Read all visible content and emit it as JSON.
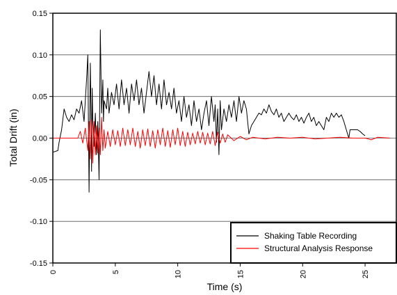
{
  "chart_data": {
    "type": "line",
    "title": "",
    "xlabel": "Time (s)",
    "ylabel": "Total Drift (in)",
    "xlim": [
      0,
      27.5
    ],
    "ylim": [
      -0.15,
      0.15
    ],
    "x_ticks": [
      0,
      5,
      10,
      15,
      20,
      25
    ],
    "x_tick_labels": [
      "0",
      "5",
      "10",
      "15",
      "20",
      "25"
    ],
    "y_ticks": [
      -0.15,
      -0.1,
      -0.05,
      0.0,
      0.05,
      0.1,
      0.15
    ],
    "y_tick_labels": [
      "-0.15",
      "-0.10",
      "-0.05",
      "0.00",
      "0.05",
      "0.10",
      "0.15"
    ],
    "grid": "horizontal",
    "legend_position": "bottom-right",
    "series": [
      {
        "name": "Shaking Table Recording",
        "color": "#000000",
        "x": [
          0,
          0.4,
          0.5,
          0.7,
          0.9,
          1.1,
          1.3,
          1.5,
          1.7,
          1.9,
          2.1,
          2.3,
          2.5,
          2.7,
          2.8,
          2.9,
          3.0,
          3.05,
          3.1,
          3.15,
          3.2,
          3.3,
          3.4,
          3.5,
          3.6,
          3.7,
          3.8,
          3.9,
          4.0,
          4.05,
          4.1,
          4.2,
          4.3,
          4.4,
          4.5,
          4.7,
          4.9,
          5.1,
          5.3,
          5.5,
          5.7,
          5.9,
          6.1,
          6.3,
          6.5,
          6.7,
          6.9,
          7.1,
          7.3,
          7.5,
          7.7,
          7.9,
          8.1,
          8.3,
          8.5,
          8.7,
          8.9,
          9.1,
          9.3,
          9.5,
          9.7,
          9.9,
          10.1,
          10.3,
          10.5,
          10.7,
          10.9,
          11.1,
          11.3,
          11.5,
          11.7,
          11.9,
          12.1,
          12.3,
          12.5,
          12.7,
          12.9,
          13.0,
          13.1,
          13.2,
          13.3,
          13.4,
          13.5,
          13.7,
          13.9,
          14.1,
          14.3,
          14.5,
          14.7,
          14.9,
          15.1,
          15.3,
          15.5,
          15.7,
          15.9,
          16.1,
          16.3,
          16.5,
          16.7,
          16.9,
          17.1,
          17.3,
          17.5,
          17.7,
          17.9,
          18.1,
          18.3,
          18.5,
          18.7,
          18.9,
          19.1,
          19.3,
          19.5,
          19.7,
          19.9,
          20.1,
          20.3,
          20.5,
          20.7,
          20.9,
          21.1,
          21.3,
          21.5,
          21.7,
          21.9,
          22.1,
          22.3,
          22.5,
          22.7,
          22.9,
          23.1,
          23.3,
          23.5,
          23.7,
          23.8,
          23.9,
          24.0,
          24.2,
          24.4,
          24.6,
          24.8,
          25.0
        ],
        "values": [
          -0.017,
          -0.015,
          -0.005,
          0.01,
          0.035,
          0.025,
          0.02,
          0.028,
          0.022,
          0.035,
          0.03,
          0.045,
          0.02,
          0.07,
          0.1,
          -0.065,
          0.09,
          0.04,
          -0.04,
          0.06,
          0.02,
          -0.01,
          0.03,
          -0.02,
          0.02,
          -0.05,
          0.13,
          0.03,
          0.07,
          0.02,
          0.045,
          0.04,
          0.035,
          0.06,
          0.03,
          0.055,
          0.04,
          0.065,
          0.035,
          0.07,
          0.04,
          0.06,
          0.03,
          0.065,
          0.045,
          0.07,
          0.04,
          0.06,
          0.03,
          0.055,
          0.08,
          0.05,
          0.075,
          0.04,
          0.065,
          0.035,
          0.07,
          0.04,
          0.055,
          0.035,
          0.06,
          0.03,
          0.045,
          0.02,
          0.05,
          0.025,
          0.04,
          0.015,
          0.045,
          0.02,
          0.035,
          0.01,
          0.03,
          0.045,
          0.015,
          0.05,
          0.02,
          0.04,
          -0.005,
          0.035,
          -0.02,
          0.045,
          0.01,
          0.035,
          0.02,
          0.04,
          0.025,
          0.045,
          0.02,
          0.05,
          0.03,
          0.045,
          0.035,
          0.005,
          0.015,
          0.02,
          0.025,
          0.03,
          0.028,
          0.035,
          0.03,
          0.04,
          0.032,
          0.028,
          0.035,
          0.025,
          0.03,
          0.02,
          0.025,
          0.03,
          0.025,
          0.022,
          0.028,
          0.02,
          0.025,
          0.018,
          0.025,
          0.03,
          0.02,
          0.025,
          0.015,
          0.02,
          0.015,
          0.01,
          0.025,
          0.02,
          0.03,
          0.025,
          0.03,
          0.025,
          0.028,
          0.02,
          0.01,
          0.0,
          0.01,
          0.01,
          0.01,
          0.01,
          0.01,
          0.008,
          0.005,
          0.003
        ]
      },
      {
        "name": "Structural Analysis Response",
        "color": "#ff0000",
        "x": [
          0,
          2.0,
          2.2,
          2.4,
          2.6,
          2.8,
          2.9,
          3.0,
          3.1,
          3.2,
          3.3,
          3.4,
          3.5,
          3.6,
          3.7,
          3.8,
          3.9,
          4.0,
          4.1,
          4.2,
          4.4,
          4.6,
          4.8,
          5.0,
          5.2,
          5.4,
          5.6,
          5.8,
          6.0,
          6.2,
          6.4,
          6.6,
          6.8,
          7.0,
          7.2,
          7.4,
          7.6,
          7.8,
          8.0,
          8.2,
          8.4,
          8.6,
          8.8,
          9.0,
          9.2,
          9.4,
          9.6,
          9.8,
          10.0,
          10.2,
          10.4,
          10.6,
          10.8,
          11.0,
          11.2,
          11.4,
          11.6,
          11.8,
          12.0,
          12.2,
          12.4,
          12.6,
          12.8,
          13.0,
          13.2,
          13.4,
          13.6,
          13.8,
          14.0,
          14.5,
          15.0,
          15.5,
          16.0,
          17.0,
          18.0,
          19.0,
          20.0,
          21.0,
          22.0,
          23.0,
          24.0,
          25.0,
          25.5,
          26.0,
          27.0
        ],
        "values": [
          0.0,
          0.0,
          0.008,
          -0.006,
          0.012,
          -0.015,
          0.02,
          -0.025,
          0.022,
          -0.03,
          0.02,
          -0.02,
          0.015,
          -0.018,
          0.012,
          -0.02,
          0.025,
          -0.015,
          0.01,
          -0.012,
          0.008,
          -0.01,
          0.01,
          -0.008,
          0.009,
          -0.01,
          0.012,
          -0.009,
          0.01,
          -0.008,
          0.012,
          -0.01,
          0.008,
          -0.012,
          0.01,
          -0.009,
          0.011,
          -0.01,
          0.009,
          -0.012,
          0.01,
          -0.008,
          0.012,
          -0.01,
          0.009,
          -0.011,
          0.01,
          -0.008,
          0.012,
          -0.009,
          0.008,
          -0.01,
          0.007,
          -0.008,
          0.006,
          -0.007,
          0.008,
          -0.006,
          0.007,
          -0.008,
          0.006,
          -0.007,
          0.008,
          -0.009,
          0.007,
          -0.006,
          0.005,
          -0.005,
          0.004,
          -0.003,
          0.002,
          -0.002,
          0.001,
          -0.001,
          0.001,
          0.0,
          0.001,
          -0.001,
          0.0,
          0.001,
          0.0,
          0.0,
          -0.002,
          0.001,
          0.0
        ]
      }
    ]
  }
}
